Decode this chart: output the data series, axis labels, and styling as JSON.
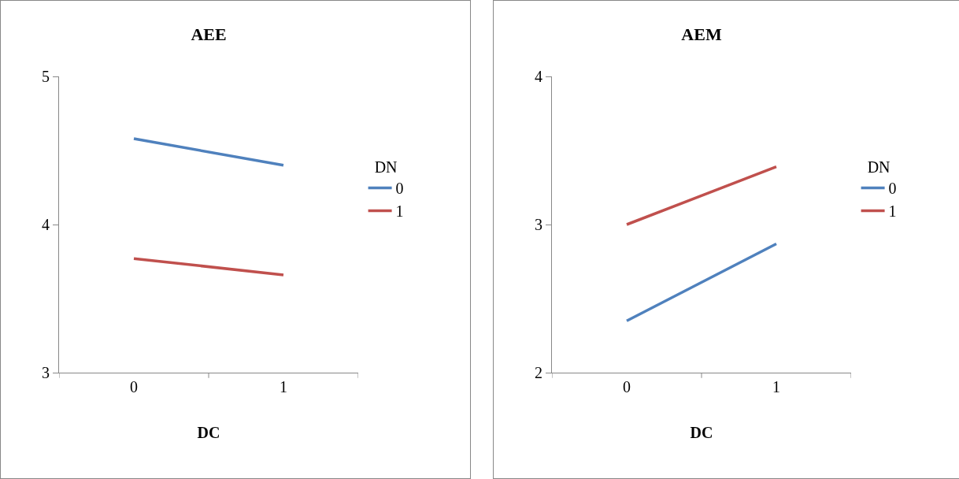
{
  "chart_data": [
    {
      "type": "line",
      "title": "AEE",
      "xlabel": "DC",
      "legend_title": "DN",
      "categories": [
        "0",
        "1"
      ],
      "ylim": [
        3,
        5
      ],
      "yticks": [
        3,
        4,
        5
      ],
      "grid": false,
      "legend": "right",
      "marker": "none",
      "line_style": "solid",
      "series": [
        {
          "name": "0",
          "color": "#4f81bd",
          "values": [
            4.58,
            4.4
          ]
        },
        {
          "name": "1",
          "color": "#c0504d",
          "values": [
            3.77,
            3.66
          ]
        }
      ]
    },
    {
      "type": "line",
      "title": "AEM",
      "xlabel": "DC",
      "legend_title": "DN",
      "categories": [
        "0",
        "1"
      ],
      "ylim": [
        2,
        4
      ],
      "yticks": [
        2,
        3,
        4
      ],
      "grid": false,
      "legend": "right",
      "marker": "none",
      "line_style": "solid",
      "series": [
        {
          "name": "0",
          "color": "#4f81bd",
          "values": [
            2.35,
            2.87
          ]
        },
        {
          "name": "1",
          "color": "#c0504d",
          "values": [
            3,
            3.39
          ]
        }
      ]
    }
  ]
}
